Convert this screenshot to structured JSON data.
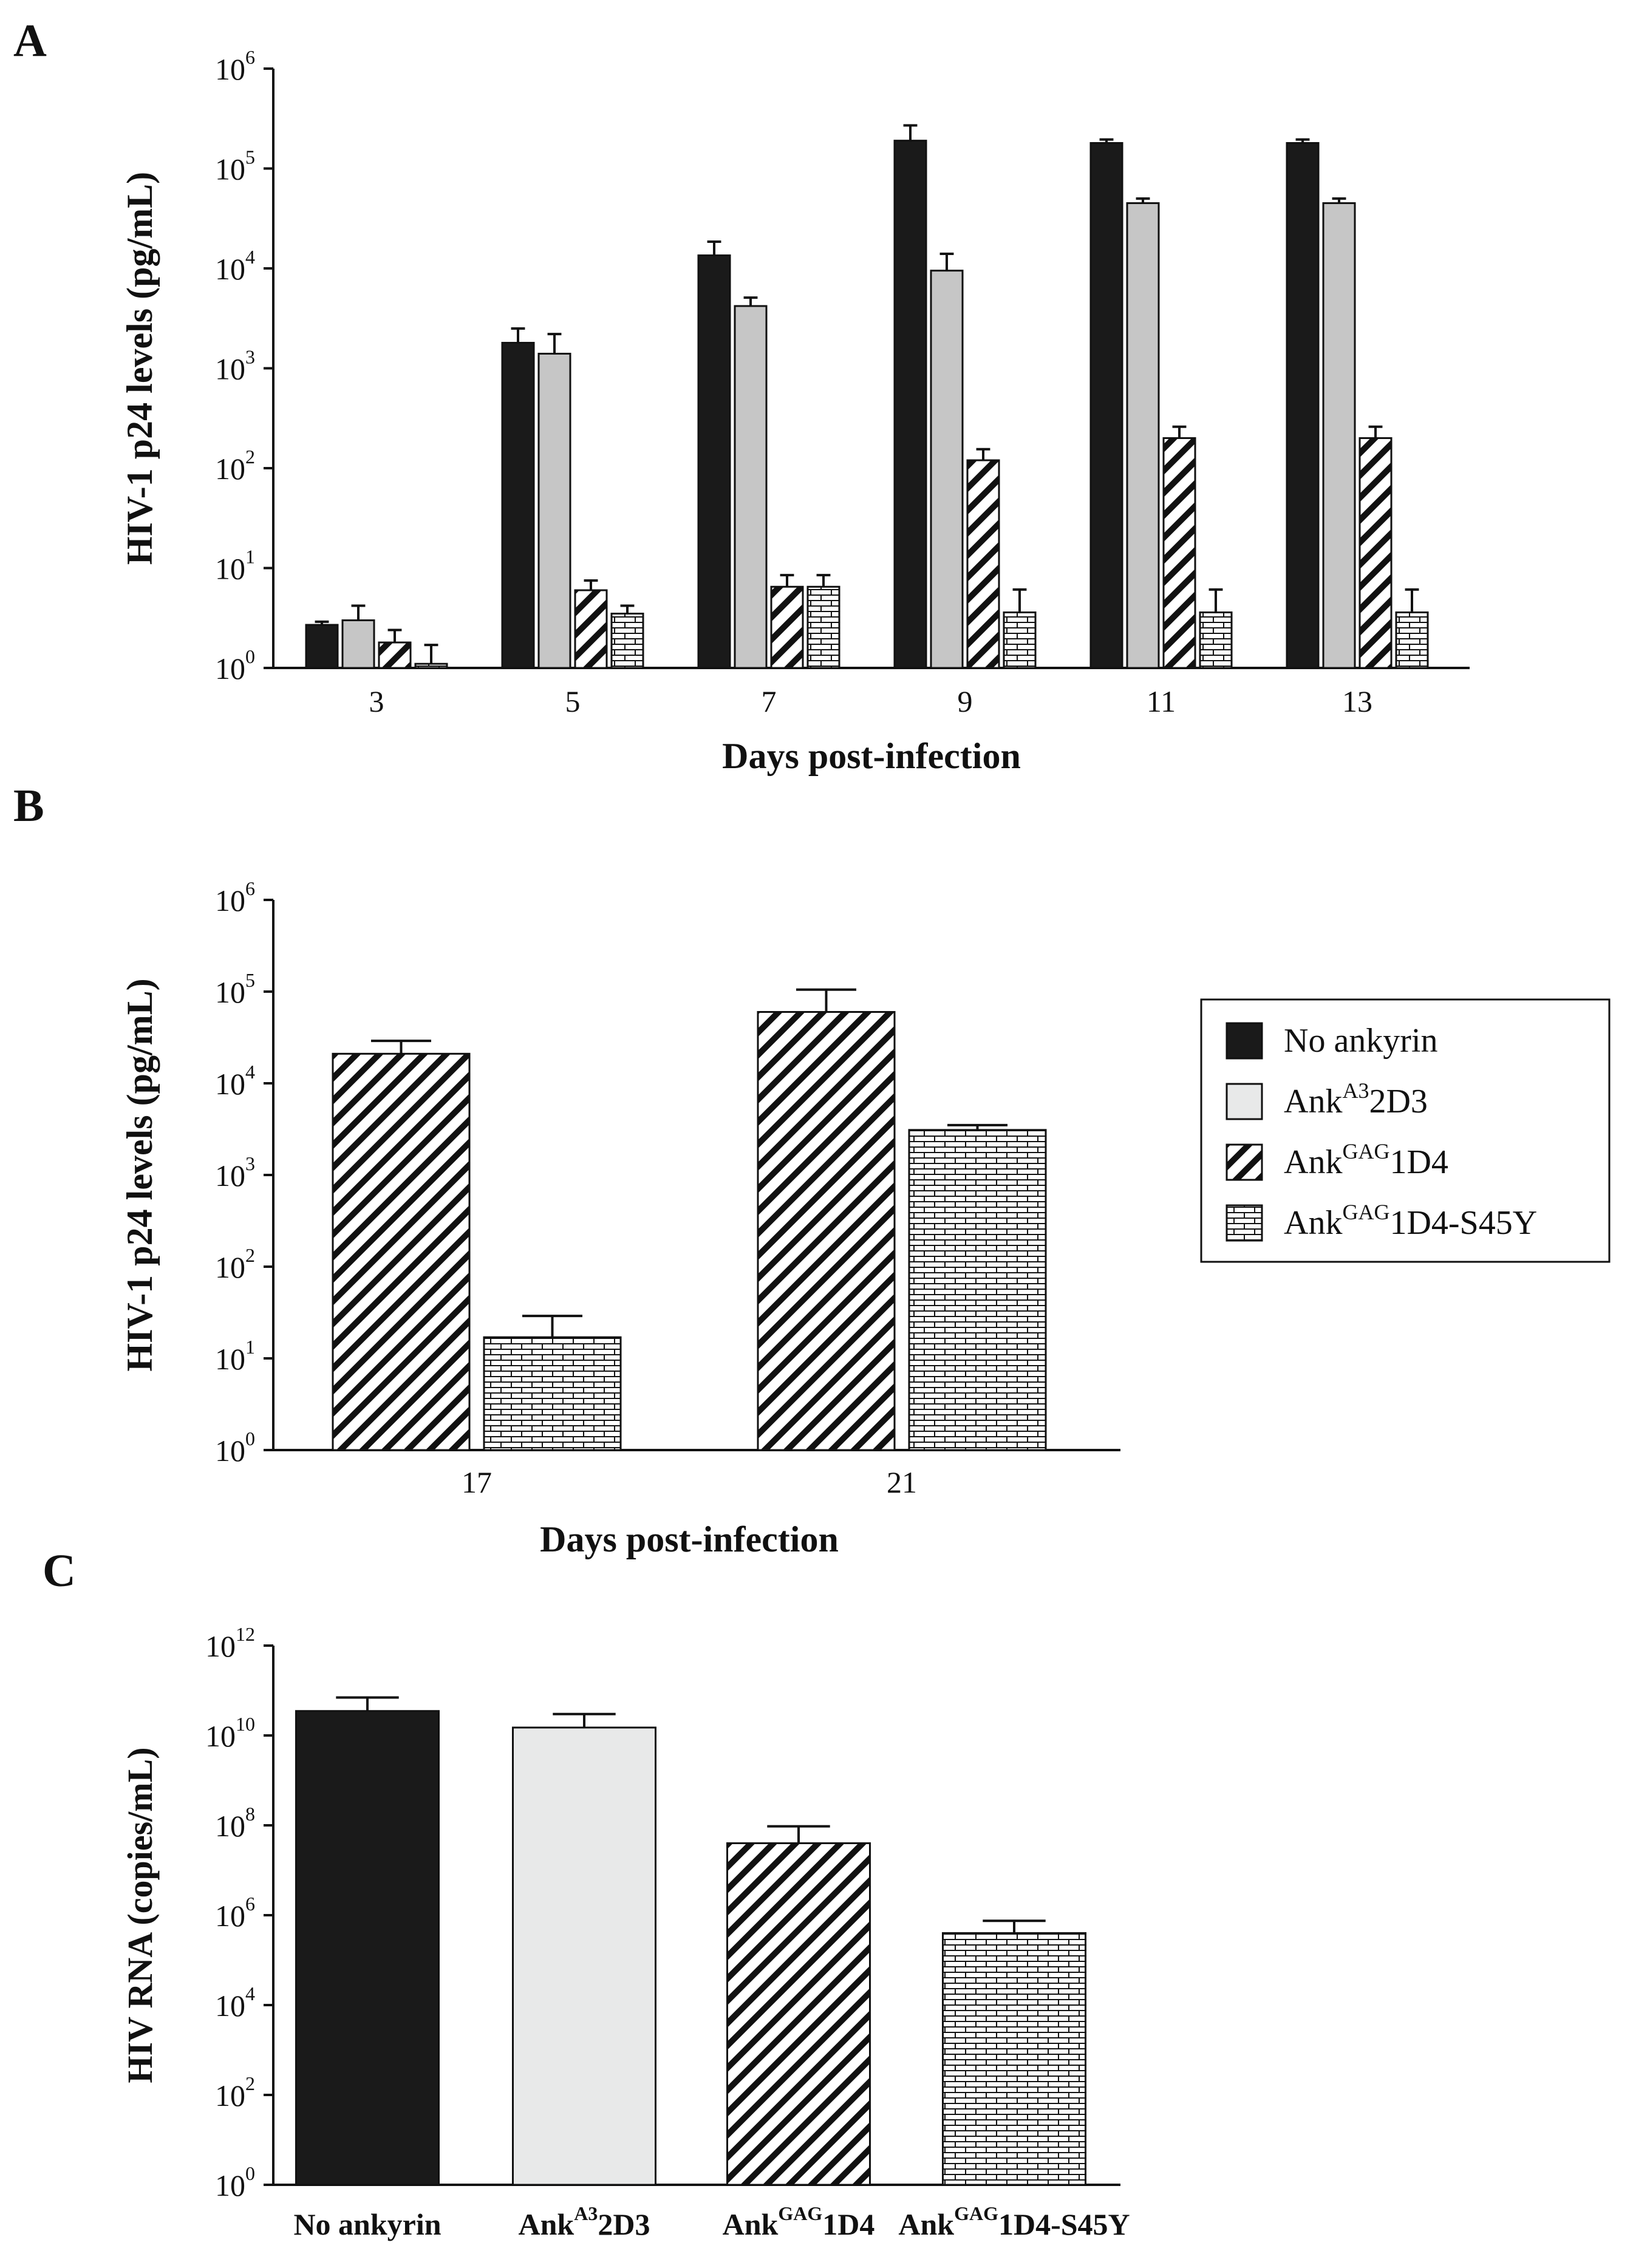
{
  "colors": {
    "no_ankyrin": "#1a1a1a",
    "ank_a3_2d3": "#c6c6c6",
    "ank_a3_2d3_c": "#e8e9e9",
    "hatch": "#111111",
    "brick": "#111111",
    "axis": "#111111"
  },
  "legend": {
    "items": [
      {
        "base": "No ankyrin",
        "sup": "",
        "tail": ""
      },
      {
        "base": "Ank",
        "sup": "A3",
        "tail": "2D3"
      },
      {
        "base": "Ank",
        "sup": "GAG",
        "tail": "1D4"
      },
      {
        "base": "Ank",
        "sup": "GAG",
        "tail": "1D4-S45Y"
      }
    ]
  },
  "chart_data": [
    {
      "panel": "A",
      "type": "bar",
      "scale": "log10",
      "xlabel": "Days post-infection",
      "ylabel": "HIV-1 p24 levels (pg/mL)",
      "ylim_exp": [
        0,
        6
      ],
      "yticks_exp": [
        0,
        1,
        2,
        3,
        4,
        5,
        6
      ],
      "tick_base": "10",
      "categories": [
        "3",
        "5",
        "7",
        "9",
        "11",
        "13"
      ],
      "series": [
        {
          "name": "No ankyrin",
          "values": [
            2.7,
            1800,
            13500,
            190000,
            180000,
            180000
          ],
          "err": [
            0.2,
            700,
            5000,
            80000,
            15000,
            15000
          ]
        },
        {
          "name": "AnkA3 2D3",
          "values": [
            3.0,
            1400,
            4200,
            9500,
            45000,
            45000
          ],
          "err": [
            1.2,
            800,
            900,
            4500,
            5000,
            5000
          ]
        },
        {
          "name": "AnkGAG 1D4",
          "values": [
            1.8,
            6.0,
            6.5,
            120,
            200,
            200
          ],
          "err": [
            0.6,
            1.5,
            2.0,
            35,
            60,
            60
          ]
        },
        {
          "name": "AnkGAG 1D4-S45Y",
          "values": [
            1.1,
            3.5,
            6.5,
            3.6,
            3.6,
            3.6
          ],
          "err": [
            0.6,
            0.7,
            2.0,
            2.5,
            2.5,
            2.5
          ]
        }
      ]
    },
    {
      "panel": "B",
      "type": "bar",
      "scale": "log10",
      "xlabel": "Days post-infection",
      "ylabel": "HIV-1 p24 levels (pg/mL)",
      "ylim_exp": [
        0,
        6
      ],
      "yticks_exp": [
        0,
        1,
        2,
        3,
        4,
        5,
        6
      ],
      "tick_base": "10",
      "categories": [
        "17",
        "21"
      ],
      "series": [
        {
          "name": "AnkGAG 1D4",
          "values": [
            21000,
            60000
          ],
          "err": [
            8000,
            45000
          ]
        },
        {
          "name": "AnkGAG 1D4-S45Y",
          "values": [
            17,
            3100
          ],
          "err": [
            12,
            400
          ]
        }
      ]
    },
    {
      "panel": "C",
      "type": "bar",
      "scale": "log10",
      "xlabel": "",
      "ylabel": "HIV RNA (copies/mL)",
      "ylim_exp": [
        0,
        12
      ],
      "yticks_exp": [
        0,
        2,
        4,
        6,
        8,
        10,
        12
      ],
      "tick_base": "10",
      "categories": [
        "No ankyrin",
        "AnkA3 2D3",
        "AnkGAG 1D4",
        "AnkGAG 1D4-S45Y"
      ],
      "values": [
        35000000000,
        15000000000,
        40000000,
        400000
      ],
      "err": [
        35000000000,
        15000000000,
        55000000,
        350000
      ]
    }
  ]
}
